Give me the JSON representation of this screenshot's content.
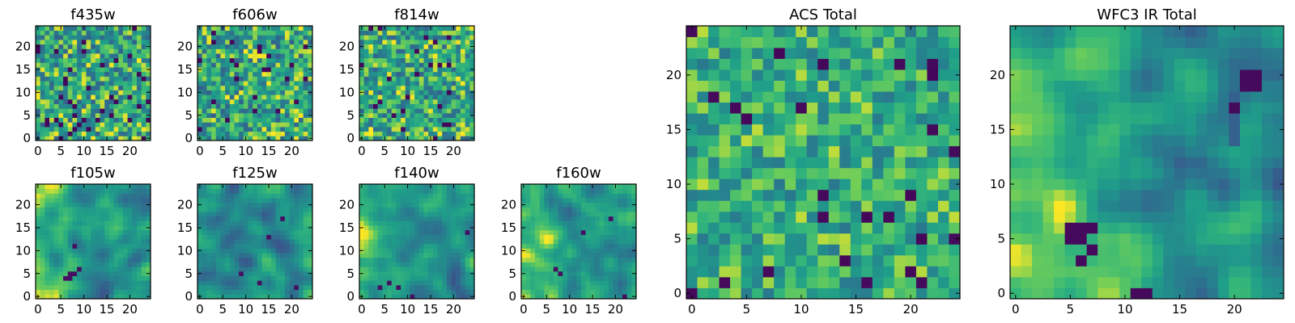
{
  "figure": {
    "background": "#ffffff"
  },
  "colormap": [
    "#440154",
    "#31688e",
    "#35b779",
    "#fde725"
  ],
  "chart_data": [
    {
      "id": "f435w",
      "type": "heatmap",
      "title": "f435w",
      "grid_size": 25,
      "xlim": [
        -0.5,
        24.5
      ],
      "ylim": [
        -0.5,
        24.5
      ],
      "xticks": [
        0,
        5,
        10,
        15,
        20
      ],
      "yticks": [
        0,
        5,
        10,
        15,
        20
      ],
      "pattern": "uniform noise"
    },
    {
      "id": "f606w",
      "type": "heatmap",
      "title": "f606w",
      "grid_size": 25,
      "xlim": [
        -0.5,
        24.5
      ],
      "ylim": [
        -0.5,
        24.5
      ],
      "xticks": [
        0,
        5,
        10,
        15,
        20
      ],
      "yticks": [
        0,
        5,
        10,
        15,
        20
      ],
      "pattern": "uniform noise"
    },
    {
      "id": "f814w",
      "type": "heatmap",
      "title": "f814w",
      "grid_size": 25,
      "xlim": [
        -0.5,
        24.5
      ],
      "ylim": [
        -0.5,
        24.5
      ],
      "xticks": [
        0,
        5,
        10,
        15,
        20
      ],
      "yticks": [
        0,
        5,
        10,
        15,
        20
      ],
      "pattern": "uniform noise"
    },
    {
      "id": "f105w",
      "type": "heatmap",
      "title": "f105w",
      "grid_size": 25,
      "xlim": [
        -0.5,
        24.5
      ],
      "ylim": [
        -0.5,
        24.5
      ],
      "xticks": [
        0,
        5,
        10,
        15,
        20
      ],
      "yticks": [
        0,
        5,
        10,
        15,
        20
      ],
      "pattern": "smooth, bright left, dark spot near (7,5)"
    },
    {
      "id": "f125w",
      "type": "heatmap",
      "title": "f125w",
      "grid_size": 25,
      "xlim": [
        -0.5,
        24.5
      ],
      "ylim": [
        -0.5,
        24.5
      ],
      "xticks": [
        0,
        5,
        10,
        15,
        20
      ],
      "yticks": [
        0,
        5,
        10,
        15,
        20
      ],
      "pattern": "smooth, mostly green with dark spots"
    },
    {
      "id": "f140w",
      "type": "heatmap",
      "title": "f140w",
      "grid_size": 25,
      "xlim": [
        -0.5,
        24.5
      ],
      "ylim": [
        -0.5,
        24.5
      ],
      "xticks": [
        0,
        5,
        10,
        15,
        20
      ],
      "yticks": [
        0,
        5,
        10,
        15,
        20
      ],
      "pattern": "smooth, bright upper left, dark spots bottom"
    },
    {
      "id": "f160w",
      "type": "heatmap",
      "title": "f160w",
      "grid_size": 25,
      "xlim": [
        -0.5,
        24.5
      ],
      "ylim": [
        -0.5,
        24.5
      ],
      "xticks": [
        0,
        5,
        10,
        15,
        20
      ],
      "yticks": [
        0,
        5,
        10,
        15,
        20
      ],
      "pattern": "smooth, bright left, dark spots right"
    },
    {
      "id": "acs_total",
      "type": "heatmap",
      "title": "ACS Total",
      "grid_size": 25,
      "xlim": [
        -0.5,
        24.5
      ],
      "ylim": [
        -0.5,
        24.5
      ],
      "xticks": [
        0,
        5,
        10,
        15,
        20
      ],
      "yticks": [
        0,
        5,
        10,
        15,
        20
      ],
      "pattern": "blocky noise, mostly green"
    },
    {
      "id": "wfc3_ir_total",
      "type": "heatmap",
      "title": "WFC3 IR Total",
      "grid_size": 25,
      "xlim": [
        -0.5,
        24.5
      ],
      "ylim": [
        -0.5,
        24.5
      ],
      "xticks": [
        0,
        5,
        10,
        15,
        20
      ],
      "yticks": [
        0,
        5,
        10,
        15,
        20
      ],
      "pattern": "smooth, bright left, dark spots at (6,5) and (22,19)"
    }
  ]
}
